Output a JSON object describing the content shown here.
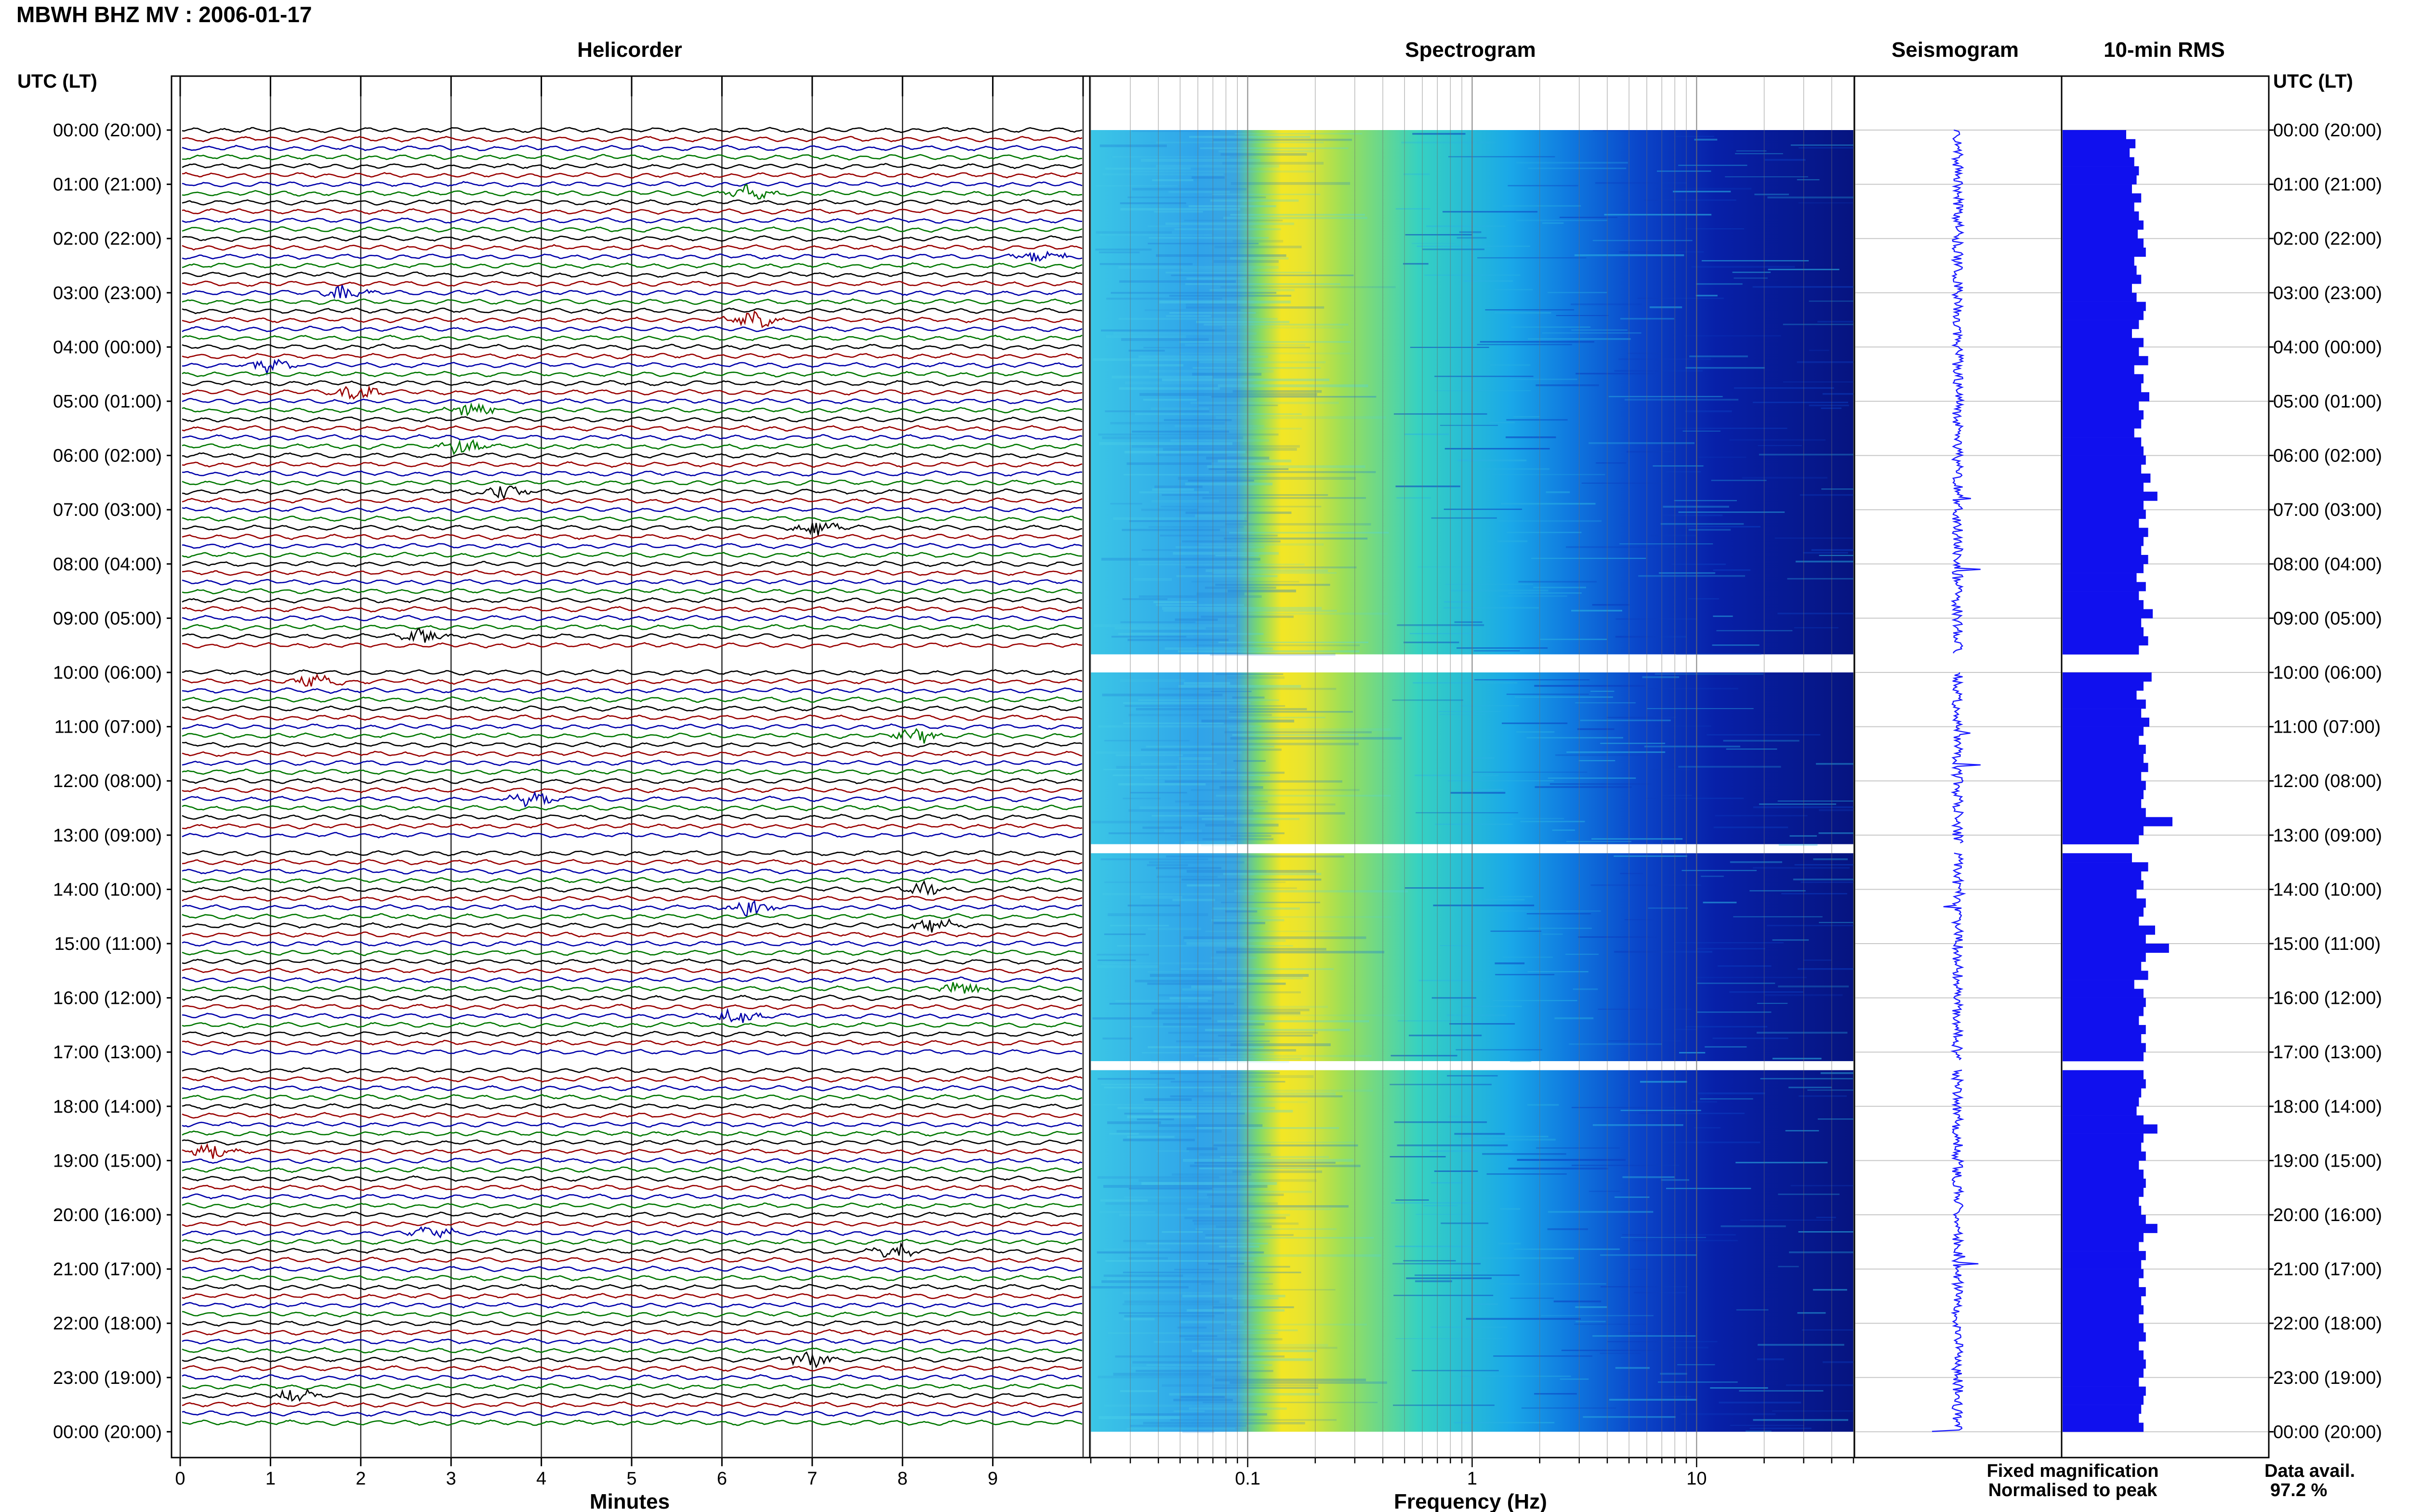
{
  "title": "MBWH BHZ MV : 2006-01-17",
  "panels": {
    "helicorder": "Helicorder",
    "spectrogram": "Spectrogram",
    "seismogram": "Seismogram",
    "rms": "10-min RMS"
  },
  "axis_header_left": "UTC (LT)",
  "axis_header_right": "UTC (LT)",
  "time_labels": [
    "00:00 (20:00)",
    "01:00 (21:00)",
    "02:00 (22:00)",
    "03:00 (23:00)",
    "04:00 (00:00)",
    "05:00 (01:00)",
    "06:00 (02:00)",
    "07:00 (03:00)",
    "08:00 (04:00)",
    "09:00 (05:00)",
    "10:00 (06:00)",
    "11:00 (07:00)",
    "12:00 (08:00)",
    "13:00 (09:00)",
    "14:00 (10:00)",
    "15:00 (11:00)",
    "16:00 (12:00)",
    "17:00 (13:00)",
    "18:00 (14:00)",
    "19:00 (15:00)",
    "20:00 (16:00)",
    "21:00 (17:00)",
    "22:00 (18:00)",
    "23:00 (19:00)",
    "00:00 (20:00)"
  ],
  "helicorder_xlabel": "Minutes",
  "helicorder_ticks": [
    "0",
    "1",
    "2",
    "3",
    "4",
    "5",
    "6",
    "7",
    "8",
    "9"
  ],
  "spectrogram_xlabel": "Frequency (Hz)",
  "spectrogram_ticks": [
    "0.1",
    "1",
    "10"
  ],
  "legend": {
    "fixed": "Fixed magnification",
    "normalised": "Normalised to peak",
    "fixed_color": "#1515ff",
    "normalised_color": "#ff1515"
  },
  "data_avail_label": "Data avail.",
  "data_avail_value": "97.2 %",
  "colors": {
    "trace_cycle": [
      "#000000",
      "#990000",
      "#0000aa",
      "#007700"
    ],
    "rms_bar": "#1010ee",
    "seis_trace": "#1a1aff"
  },
  "chart_data": {
    "type": "heatmap",
    "panels": [
      "Helicorder",
      "Spectrogram",
      "Seismogram",
      "10-min RMS"
    ],
    "helicorder_x_range_min": [
      0,
      10
    ],
    "spectrogram_x_range_hz": [
      0.02,
      50
    ],
    "spectrogram_x_scale": "log",
    "time_range_utc": [
      "00:00",
      "24:00"
    ],
    "rows_per_hour": 6,
    "data_gaps_utc": [
      "09:40-10:00",
      "13:10-13:20",
      "17:10-17:20"
    ],
    "spectrogram_peak_band_hz": [
      0.15,
      0.3
    ],
    "rms_10min_relative": [
      0.55,
      0.63,
      0.58,
      0.62,
      0.66,
      0.64,
      0.6,
      0.68,
      0.62,
      0.66,
      0.7,
      0.65,
      0.7,
      0.72,
      0.62,
      0.64,
      0.68,
      0.6,
      0.64,
      0.72,
      0.7,
      0.66,
      0.6,
      0.7,
      0.66,
      0.74,
      0.62,
      0.7,
      0.68,
      0.75,
      0.66,
      0.7,
      0.68,
      0.62,
      0.68,
      0.7,
      0.72,
      0.68,
      0.76,
      0.7,
      0.82,
      0.7,
      0.72,
      0.66,
      0.74,
      0.7,
      0.68,
      0.74,
      0.7,
      0.64,
      0.72,
      0.66,
      0.7,
      0.78,
      0.68,
      0.7,
      0.74,
      0.66,
      0.72,
      0.63,
      0.77,
      0.7,
      0.64,
      0.72,
      0.68,
      0.75,
      0.7,
      0.66,
      0.72,
      0.7,
      0.74,
      0.68,
      0.72,
      0.7,
      0.68,
      0.72,
      0.95,
      0.7,
      0.66,
      0.72,
      0.6,
      0.74,
      0.68,
      0.7,
      0.64,
      0.72,
      0.7,
      0.66,
      0.8,
      0.72,
      0.92,
      0.72,
      0.68,
      0.74,
      0.62,
      0.7,
      0.72,
      0.7,
      0.66,
      0.72,
      0.68,
      0.72,
      0.7,
      0.66,
      0.7,
      0.72,
      0.68,
      0.66,
      0.64,
      0.7,
      0.82,
      0.7,
      0.68,
      0.72,
      0.66,
      0.7,
      0.72,
      0.7,
      0.66,
      0.68,
      0.72,
      0.82,
      0.7,
      0.66,
      0.72,
      0.68,
      0.7,
      0.66,
      0.72,
      0.68,
      0.7,
      0.66,
      0.7,
      0.72,
      0.66,
      0.7,
      0.72,
      0.7,
      0.66,
      0.72,
      0.7,
      0.68,
      0.66,
      0.7
    ]
  }
}
